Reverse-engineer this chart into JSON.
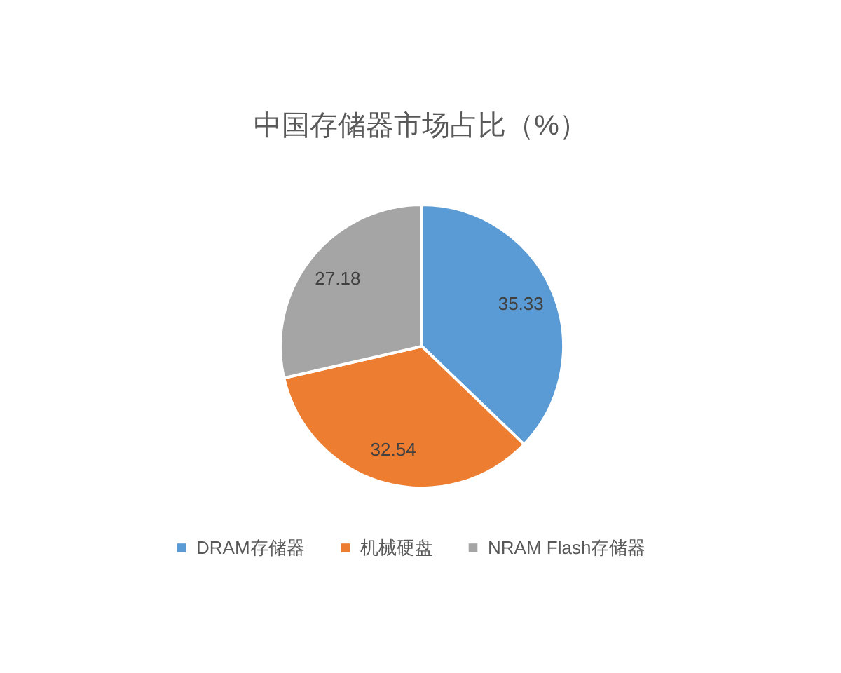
{
  "chart_data": {
    "type": "pie",
    "title": "中国存储器市场占比（%）",
    "categories": [
      "DRAM存储器",
      "机械硬盘",
      "NRAM Flash存储器"
    ],
    "values": [
      35.33,
      32.54,
      27.18
    ],
    "colors": [
      "#5b9bd5",
      "#ed7d31",
      "#a5a5a5"
    ],
    "data_labels": true,
    "legend": "bottom"
  }
}
